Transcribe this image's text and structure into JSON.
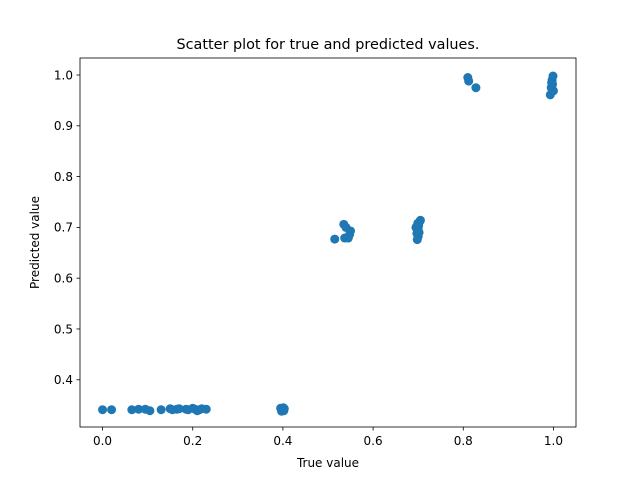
{
  "chart_data": {
    "type": "scatter",
    "title": "Scatter plot for true and predicted values.",
    "xlabel": "True value",
    "ylabel": "Predicted value",
    "xlim": [
      -0.05,
      1.05
    ],
    "ylim": [
      0.307,
      1.0335
    ],
    "xticks": [
      "0.0",
      "0.2",
      "0.4",
      "0.6",
      "0.8",
      "1.0"
    ],
    "yticks": [
      "0.4",
      "0.5",
      "0.6",
      "0.7",
      "0.8",
      "0.9",
      "1.0"
    ],
    "grid": false,
    "legend": "none",
    "color": "#1f77b4",
    "series": [
      {
        "x": [
          0.0,
          0.02,
          0.065,
          0.08,
          0.095,
          0.105,
          0.13,
          0.15,
          0.155,
          0.165,
          0.17,
          0.185,
          0.19,
          0.2,
          0.205,
          0.21,
          0.215,
          0.22,
          0.23,
          0.395,
          0.397,
          0.399,
          0.4,
          0.401,
          0.402,
          0.403,
          0.515,
          0.535,
          0.537,
          0.54,
          0.545,
          0.548,
          0.55,
          0.695,
          0.697,
          0.698,
          0.699,
          0.7,
          0.7,
          0.701,
          0.702,
          0.703,
          0.705,
          0.81,
          0.812,
          0.828,
          0.993,
          0.995,
          0.996,
          0.997,
          0.998,
          0.999,
          1.0
        ],
        "y": [
          0.341,
          0.341,
          0.341,
          0.342,
          0.342,
          0.339,
          0.341,
          0.343,
          0.341,
          0.342,
          0.343,
          0.342,
          0.341,
          0.344,
          0.342,
          0.339,
          0.341,
          0.343,
          0.342,
          0.344,
          0.338,
          0.342,
          0.34,
          0.345,
          0.339,
          0.343,
          0.677,
          0.706,
          0.679,
          0.7,
          0.679,
          0.686,
          0.693,
          0.7,
          0.688,
          0.676,
          0.708,
          0.682,
          0.695,
          0.703,
          0.69,
          0.711,
          0.714,
          0.995,
          0.988,
          0.975,
          0.961,
          0.975,
          0.985,
          0.99,
          0.982,
          0.998,
          0.969
        ]
      }
    ]
  }
}
